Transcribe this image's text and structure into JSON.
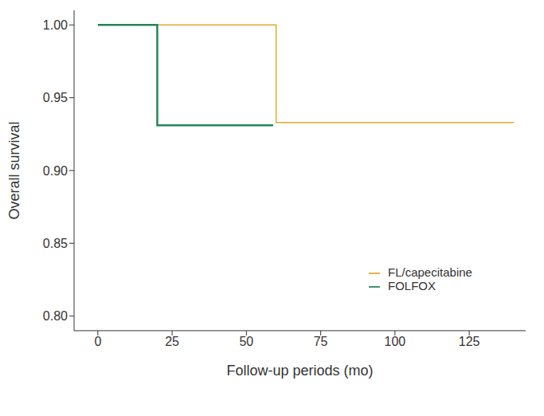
{
  "chart_data": {
    "type": "step",
    "xlabel": "Follow-up periods (mo)",
    "ylabel": "Overall survival",
    "xlim": [
      -8,
      144
    ],
    "xticks": [
      0,
      25,
      50,
      75,
      100,
      125
    ],
    "ylim": [
      0.79,
      1.01
    ],
    "yticks": [
      {
        "value": 0.8,
        "label": "0.80"
      },
      {
        "value": 0.85,
        "label": "0.85"
      },
      {
        "value": 0.9,
        "label": "0.90"
      },
      {
        "value": 0.95,
        "label": "0.95"
      },
      {
        "value": 1.0,
        "label": "1.00"
      }
    ],
    "grid": false,
    "legend": "lower right",
    "series": [
      {
        "name": "FL/capecitabine",
        "color": "#e3a92c",
        "x": [
          0,
          60,
          140
        ],
        "values": [
          1.0,
          0.933,
          0.933
        ]
      },
      {
        "name": "FOLFOX",
        "color": "#23865c",
        "x": [
          0,
          20,
          59
        ],
        "values": [
          1.0,
          0.931,
          0.931
        ]
      }
    ]
  }
}
